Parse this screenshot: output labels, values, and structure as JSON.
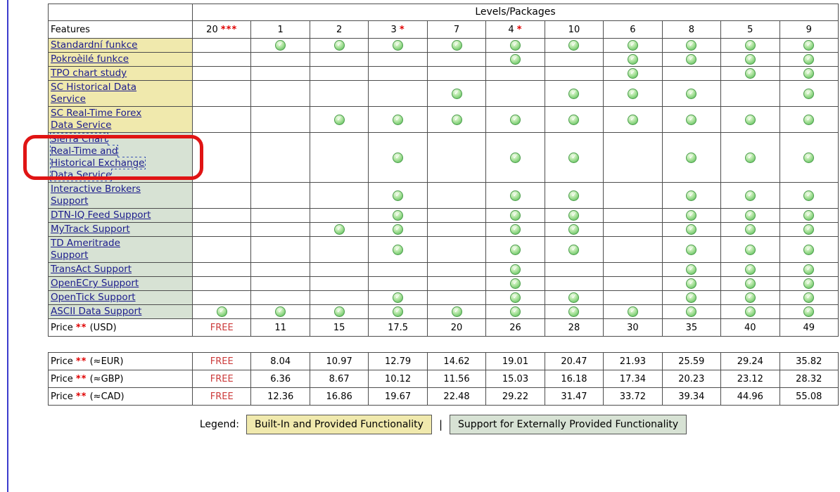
{
  "table": {
    "levels_header": "Levels/Packages",
    "features_header": "Features",
    "columns": [
      {
        "label": "20",
        "mark": "***"
      },
      {
        "label": "1",
        "mark": ""
      },
      {
        "label": "2",
        "mark": ""
      },
      {
        "label": "3",
        "mark": "*"
      },
      {
        "label": "7",
        "mark": ""
      },
      {
        "label": "4",
        "mark": "*"
      },
      {
        "label": "10",
        "mark": ""
      },
      {
        "label": "6",
        "mark": ""
      },
      {
        "label": "8",
        "mark": ""
      },
      {
        "label": "5",
        "mark": ""
      },
      {
        "label": "9",
        "mark": ""
      }
    ],
    "rows": [
      {
        "feature": "Standardní funkce",
        "type": "builtin",
        "checks": [
          0,
          1,
          1,
          1,
          1,
          1,
          1,
          1,
          1,
          1,
          1
        ]
      },
      {
        "feature": "Pokroèilé funkce",
        "type": "builtin",
        "checks": [
          0,
          0,
          0,
          0,
          0,
          1,
          0,
          1,
          1,
          1,
          1
        ]
      },
      {
        "feature": "TPO chart study",
        "type": "builtin",
        "checks": [
          0,
          0,
          0,
          0,
          0,
          0,
          0,
          1,
          0,
          1,
          1
        ]
      },
      {
        "feature": "SC Historical Data Service",
        "lines": [
          "SC Historical Data",
          "Service"
        ],
        "type": "builtin",
        "checks": [
          0,
          0,
          0,
          0,
          1,
          0,
          1,
          1,
          1,
          0,
          1
        ]
      },
      {
        "feature": "SC Real-Time Forex Data Service",
        "lines": [
          "SC Real-Time Forex",
          "Data Service"
        ],
        "type": "builtin",
        "checks": [
          0,
          0,
          1,
          1,
          1,
          1,
          1,
          1,
          1,
          1,
          1
        ]
      },
      {
        "feature": "Sierra Chart Real-Time and Historical Exchange Data Service",
        "lines": [
          "Sierra Chart",
          "Real-Time and",
          "Historical Exchange",
          "Data Service"
        ],
        "type": "external",
        "checks": [
          0,
          0,
          0,
          1,
          0,
          1,
          1,
          0,
          1,
          1,
          1
        ],
        "annotated": true,
        "focused": true
      },
      {
        "feature": "Interactive Brokers Support",
        "lines": [
          "Interactive Brokers",
          "Support"
        ],
        "type": "external",
        "checks": [
          0,
          0,
          0,
          1,
          0,
          1,
          1,
          0,
          1,
          1,
          1
        ]
      },
      {
        "feature": "DTN-IQ Feed Support",
        "type": "external",
        "checks": [
          0,
          0,
          0,
          1,
          0,
          1,
          1,
          0,
          1,
          1,
          1
        ]
      },
      {
        "feature": "MyTrack Support",
        "type": "external",
        "checks": [
          0,
          0,
          1,
          1,
          0,
          1,
          1,
          0,
          1,
          1,
          1
        ]
      },
      {
        "feature": "TD Ameritrade Support",
        "lines": [
          "TD Ameritrade",
          "Support"
        ],
        "type": "external",
        "checks": [
          0,
          0,
          0,
          1,
          0,
          1,
          1,
          0,
          1,
          1,
          1
        ]
      },
      {
        "feature": "TransAct Support",
        "type": "external",
        "checks": [
          0,
          0,
          0,
          0,
          0,
          1,
          0,
          0,
          1,
          1,
          1
        ]
      },
      {
        "feature": "OpenECry Support",
        "type": "external",
        "checks": [
          0,
          0,
          0,
          0,
          0,
          1,
          0,
          0,
          1,
          1,
          1
        ]
      },
      {
        "feature": "OpenTick Support",
        "type": "external",
        "checks": [
          0,
          0,
          0,
          1,
          0,
          1,
          1,
          0,
          1,
          1,
          1
        ]
      },
      {
        "feature": "ASCII Data Support",
        "type": "external",
        "checks": [
          1,
          1,
          1,
          1,
          1,
          1,
          1,
          1,
          1,
          1,
          1
        ]
      }
    ],
    "price_row": {
      "prefix": "Price",
      "asterisks": "**",
      "currency": "(USD)",
      "values": [
        "FREE",
        "11",
        "15",
        "17.5",
        "20",
        "26",
        "28",
        "30",
        "35",
        "40",
        "49"
      ]
    }
  },
  "currency_table": {
    "rows": [
      {
        "prefix": "Price",
        "asterisks": "**",
        "currency": "(≈EUR)",
        "values": [
          "FREE",
          "8.04",
          "10.97",
          "12.79",
          "14.62",
          "19.01",
          "20.47",
          "21.93",
          "25.59",
          "29.24",
          "35.82"
        ]
      },
      {
        "prefix": "Price",
        "asterisks": "**",
        "currency": "(≈GBP)",
        "values": [
          "FREE",
          "6.36",
          "8.67",
          "10.12",
          "11.56",
          "15.03",
          "16.18",
          "17.34",
          "20.23",
          "23.12",
          "28.32"
        ]
      },
      {
        "prefix": "Price",
        "asterisks": "**",
        "currency": "(≈CAD)",
        "values": [
          "FREE",
          "12.36",
          "16.86",
          "19.67",
          "22.48",
          "29.22",
          "31.47",
          "33.72",
          "39.34",
          "44.96",
          "55.08"
        ]
      }
    ]
  },
  "legend": {
    "label": "Legend:",
    "builtin": "Built-In and Provided Functionality",
    "separator": "|",
    "external": "Support for Externally Provided Functionality"
  },
  "icons": {
    "check": "✓"
  },
  "colors": {
    "builtin_bg": "#f0e9ad",
    "external_bg": "#d7e2d4",
    "link_blue": "#1c1c8c",
    "asterisk_red": "#e00000",
    "free_red": "#cc3b3b",
    "check_border": "#4c9e4c",
    "annotation_red": "#e01414",
    "page_edge_blue": "#3c3ccd"
  }
}
